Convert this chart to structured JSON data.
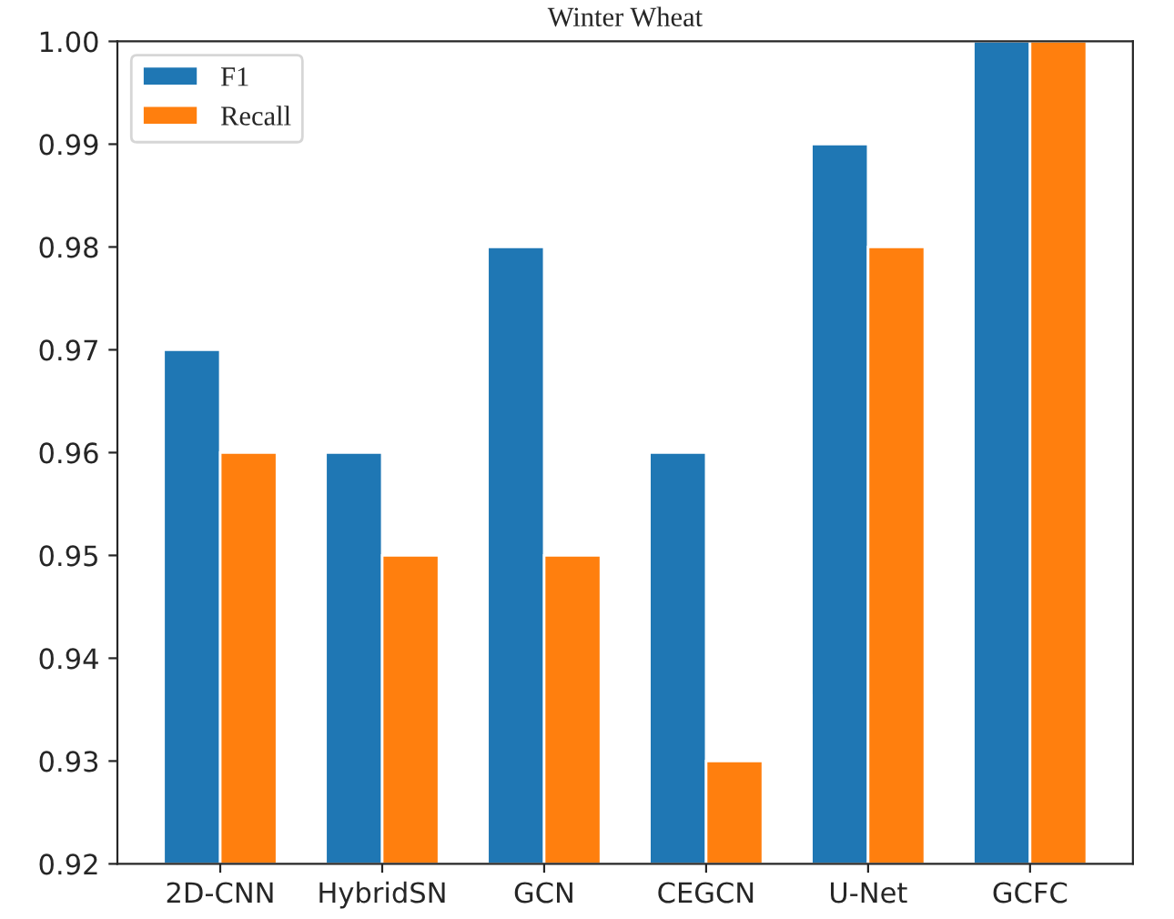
{
  "chart_data": {
    "type": "bar",
    "title": "Winter Wheat",
    "categories": [
      "2D-CNN",
      "HybridSN",
      "GCN",
      "CEGCN",
      "U-Net",
      "GCFC"
    ],
    "series": [
      {
        "name": "F1",
        "color": "#1f77b4",
        "values": [
          0.97,
          0.96,
          0.98,
          0.96,
          0.99,
          1.0
        ]
      },
      {
        "name": "Recall",
        "color": "#ff7f0e",
        "values": [
          0.96,
          0.95,
          0.95,
          0.93,
          0.98,
          1.0
        ]
      }
    ],
    "ylim": [
      0.92,
      1.0
    ],
    "yticks": [
      {
        "value": 0.92,
        "label": "0.92"
      },
      {
        "value": 0.93,
        "label": "0.93"
      },
      {
        "value": 0.94,
        "label": "0.94"
      },
      {
        "value": 0.95,
        "label": "0.95"
      },
      {
        "value": 0.96,
        "label": "0.96"
      },
      {
        "value": 0.97,
        "label": "0.97"
      },
      {
        "value": 0.98,
        "label": "0.98"
      },
      {
        "value": 0.99,
        "label": "0.99"
      },
      {
        "value": 1.0,
        "label": "1.00"
      }
    ],
    "legend": "top left",
    "grid": false
  }
}
